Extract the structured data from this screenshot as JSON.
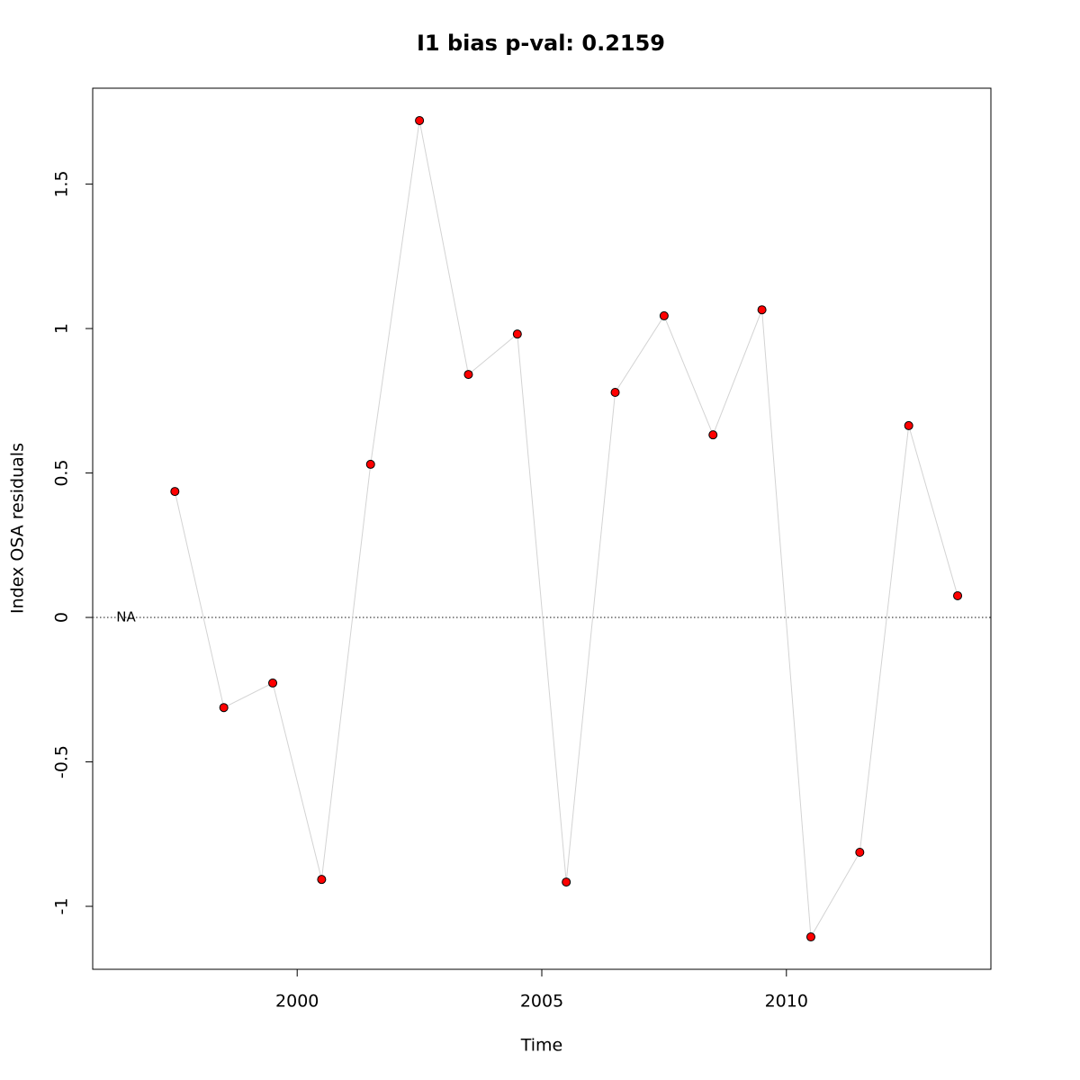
{
  "chart_data": {
    "type": "line",
    "title": "I1 bias p-val: 0.2159",
    "title_color": "#228b22",
    "xlabel": "Time",
    "ylabel": "Index OSA residuals",
    "x": [
      1996.5,
      1997.5,
      1998.5,
      1999.5,
      2000.5,
      2001.5,
      2002.5,
      2003.5,
      2004.5,
      2005.5,
      2006.5,
      2007.5,
      2008.5,
      2009.5,
      2010.5,
      2011.5,
      2012.5,
      2013.5
    ],
    "series": [
      {
        "name": "Index OSA residuals",
        "color": "#ff0000",
        "line_color": "#d3d3d3",
        "values": [
          null,
          0.436,
          -0.312,
          -0.227,
          -0.907,
          0.53,
          1.72,
          0.841,
          0.981,
          -0.916,
          0.779,
          1.044,
          0.632,
          1.065,
          -1.106,
          -0.813,
          0.664,
          0.075
        ]
      }
    ],
    "na_label": "NA",
    "hline": 0,
    "xlim": [
      1995.82,
      2014.18
    ],
    "xticks": [
      2000,
      2005,
      2010
    ],
    "ylim": [
      -1.218,
      1.832
    ],
    "yticks": [
      -1.0,
      -0.5,
      0.0,
      0.5,
      1.0,
      1.5
    ],
    "grid": false
  }
}
